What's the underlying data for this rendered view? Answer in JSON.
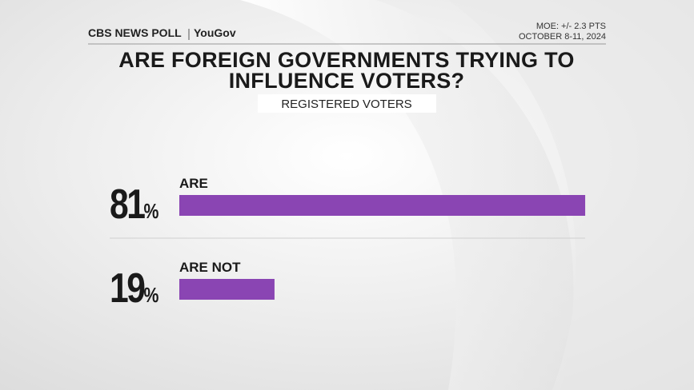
{
  "chart_data": {
    "type": "bar",
    "orientation": "horizontal",
    "source": "CBS NEWS POLL",
    "partner": "YouGov",
    "moe": "MOE: +/- 2.3 PTS",
    "dates": "OCTOBER 8-11, 2024",
    "title": "ARE FOREIGN GOVERNMENTS TRYING TO INFLUENCE VOTERS?",
    "subtitle": "REGISTERED VOTERS",
    "categories": [
      "ARE",
      "ARE NOT"
    ],
    "values": [
      81,
      19
    ],
    "value_labels": [
      "81%",
      "19%"
    ],
    "color": "#8a45b3"
  }
}
